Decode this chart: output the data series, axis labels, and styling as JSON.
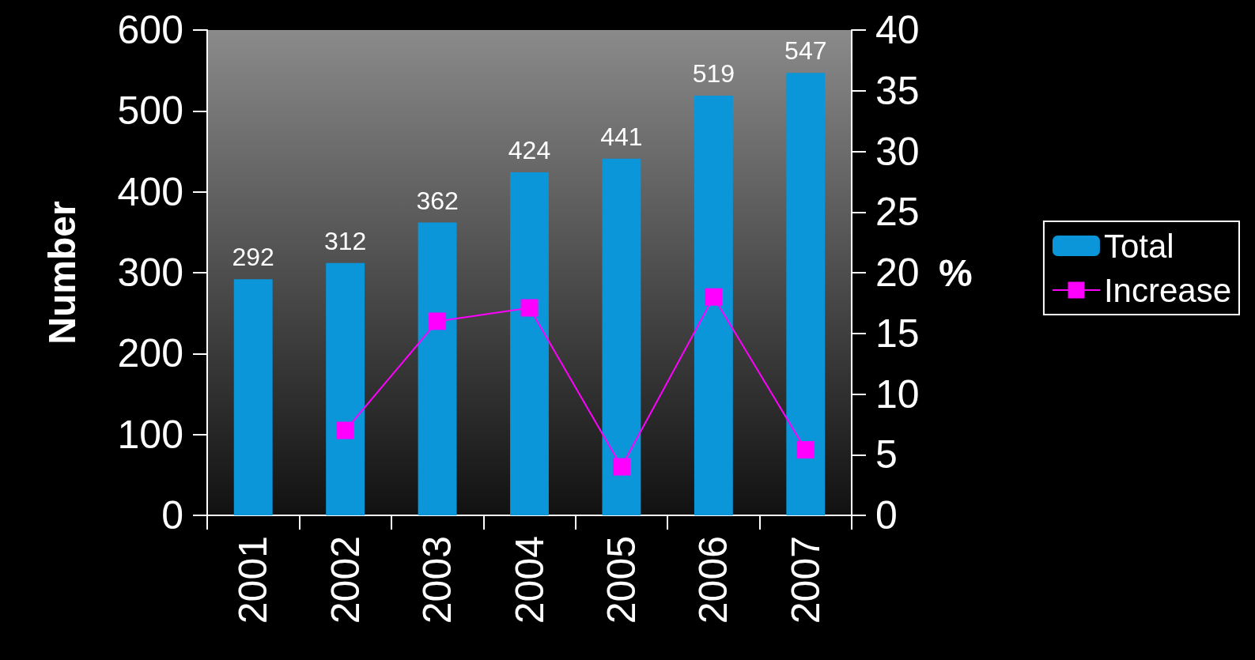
{
  "chart_data": {
    "type": "bar",
    "ylabel": "Number",
    "y2label": "%",
    "categories": [
      "2001",
      "2002",
      "2003",
      "2004",
      "2005",
      "2006",
      "2007"
    ],
    "series": [
      {
        "name": "Total",
        "color": "#0a96d8",
        "values": [
          292,
          312,
          362,
          424,
          441,
          519,
          547
        ],
        "value_labels": [
          "292",
          "312",
          "362",
          "424",
          "441",
          "519",
          "547"
        ]
      },
      {
        "name": "Increase",
        "type": "line",
        "axis": "y2",
        "color": "#ff00ff",
        "marker": "square",
        "values": [
          null,
          7.0,
          16.0,
          17.1,
          4.0,
          18.0,
          5.4
        ]
      }
    ],
    "ylim": [
      0,
      600
    ],
    "yticks": [
      0,
      100,
      200,
      300,
      400,
      500,
      600
    ],
    "y2lim": [
      0,
      40
    ],
    "y2ticks": [
      0,
      5,
      10,
      15,
      20,
      25,
      30,
      35,
      40
    ],
    "grid": false,
    "legend": "right"
  }
}
